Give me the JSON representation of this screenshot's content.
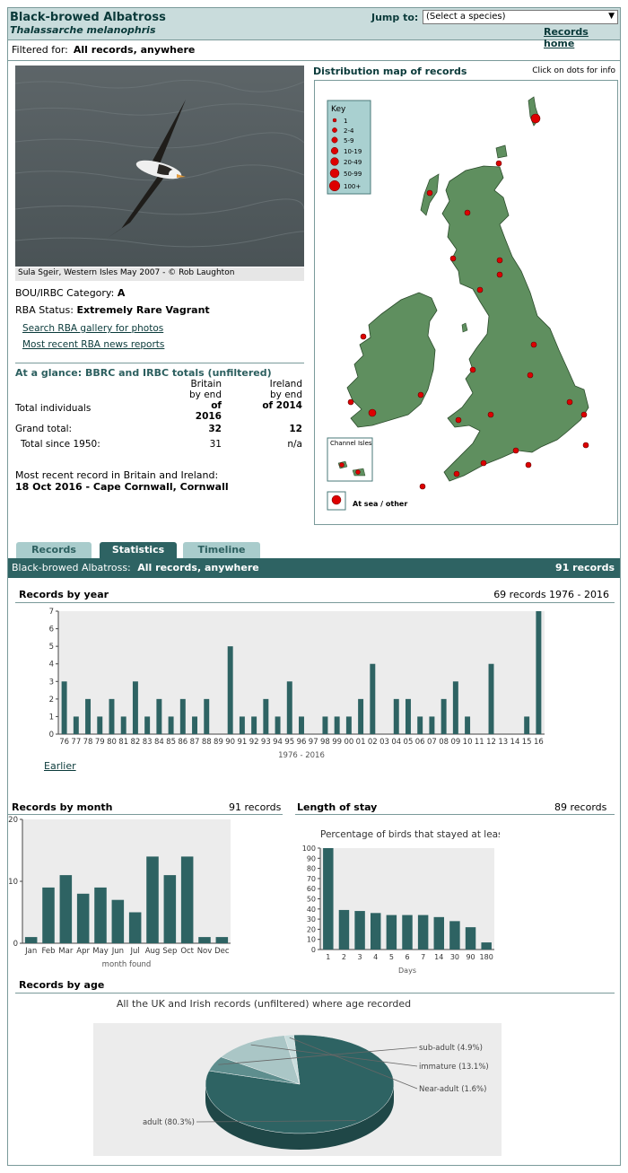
{
  "header": {
    "common_name": "Black-browed Albatross",
    "scientific_name": "Thalassarche melanophris",
    "jump_label": "Jump to:",
    "jump_value": "(Select a species)",
    "home_link": "Records home"
  },
  "filter": {
    "label": "Filtered for:",
    "value": "All records, anywhere"
  },
  "photo": {
    "caption": "Sula Sgeir, Western Isles May 2007 - © Rob Laughton"
  },
  "category": {
    "label": "BOU/IRBC Category:",
    "value": "A"
  },
  "status": {
    "label": "RBA Status:",
    "value": "Extremely Rare Vagrant"
  },
  "links": {
    "gallery": "Search RBA gallery for photos",
    "news": "Most recent RBA news reports"
  },
  "glance": {
    "title": "At a glance: BBRC and IRBC totals (unfiltered)",
    "col_britain": [
      "Britain",
      "by end",
      "of 2016"
    ],
    "col_ireland": [
      "Ireland",
      "by end",
      "of 2014"
    ],
    "row_label_header": "Total individuals",
    "rows": [
      {
        "label": "Grand total:",
        "britain": "32",
        "ireland": "12"
      },
      {
        "label": "Total since 1950:",
        "britain": "31",
        "ireland": "n/a"
      }
    ]
  },
  "recent": {
    "label": "Most recent record in Britain and Ireland:",
    "value": "18 Oct 2016 - Cape Cornwall, Cornwall"
  },
  "map": {
    "title": "Distribution map of records",
    "hint": "Click on dots for info",
    "key_title": "Key",
    "key_items": [
      "1",
      "2-4",
      "5-9",
      "10-19",
      "20-49",
      "50-99",
      "100+"
    ],
    "channel_isles": "Channel Isles",
    "at_sea": "At sea / other",
    "colors": {
      "land": "#5f8f5f",
      "dot": "#dd0000",
      "key_bg": "#a9d0d0"
    }
  },
  "tabs": {
    "records": "Records",
    "statistics": "Statistics",
    "timeline": "Timeline"
  },
  "stats_bar": {
    "species": "Black-browed Albatross:",
    "filter": "All records, anywhere",
    "count": "91 records"
  },
  "by_year": {
    "title": "Records by year",
    "summary": "69 records 1976 - 2016",
    "earlier": "Earlier"
  },
  "by_month": {
    "title": "Records by month",
    "summary": "91 records"
  },
  "stay": {
    "title": "Length of stay",
    "summary": "89 records"
  },
  "by_age": {
    "title": "Records by age"
  },
  "chart_data": [
    {
      "type": "bar",
      "title": "Records by year",
      "xlabel": "1976 - 2016",
      "ylabel": "",
      "ylim": [
        0,
        7
      ],
      "categories": [
        "76",
        "77",
        "78",
        "79",
        "80",
        "81",
        "82",
        "83",
        "84",
        "85",
        "86",
        "87",
        "88",
        "89",
        "90",
        "91",
        "92",
        "93",
        "94",
        "95",
        "96",
        "97",
        "98",
        "99",
        "00",
        "01",
        "02",
        "03",
        "04",
        "05",
        "06",
        "07",
        "08",
        "09",
        "10",
        "11",
        "12",
        "13",
        "14",
        "15",
        "16"
      ],
      "values": [
        3,
        1,
        2,
        1,
        2,
        1,
        3,
        1,
        2,
        1,
        2,
        1,
        2,
        0,
        5,
        1,
        1,
        2,
        1,
        3,
        1,
        0,
        1,
        1,
        1,
        2,
        4,
        0,
        2,
        2,
        1,
        1,
        2,
        3,
        1,
        0,
        4,
        0,
        0,
        1,
        7
      ]
    },
    {
      "type": "bar",
      "title": "Records by month",
      "xlabel": "month found",
      "ylabel": "",
      "ylim": [
        0,
        20
      ],
      "categories": [
        "Jan",
        "Feb",
        "Mar",
        "Apr",
        "May",
        "Jun",
        "Jul",
        "Aug",
        "Sep",
        "Oct",
        "Nov",
        "Dec"
      ],
      "values": [
        1,
        9,
        11,
        8,
        9,
        7,
        5,
        14,
        11,
        14,
        1,
        1
      ]
    },
    {
      "type": "bar",
      "title": "Percentage of birds that stayed at least...",
      "xlabel": "Days",
      "ylabel": "",
      "ylim": [
        0,
        100
      ],
      "categories": [
        "1",
        "2",
        "3",
        "4",
        "5",
        "6",
        "7",
        "14",
        "30",
        "90",
        "180"
      ],
      "values": [
        100,
        39,
        38,
        36,
        34,
        34,
        34,
        32,
        28,
        22,
        7
      ]
    },
    {
      "type": "pie",
      "title": "All the UK and Irish records (unfiltered) where age recorded",
      "categories": [
        "adult (80.3%)",
        "sub-adult (4.9%)",
        "immature (13.1%)",
        "Near-adult (1.6%)"
      ],
      "values": [
        80.3,
        4.9,
        13.1,
        1.6
      ]
    }
  ]
}
